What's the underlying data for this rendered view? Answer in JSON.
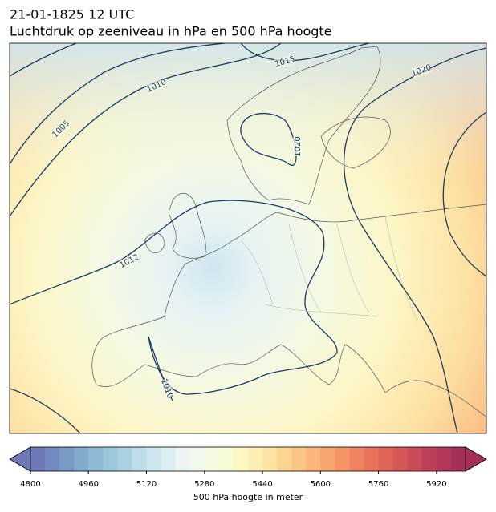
{
  "title": {
    "line1": "21-01-1825 12 UTC",
    "line2": "Luchtdruk op zeeniveau in hPa en 500 hPa hoogte"
  },
  "map": {
    "contour_labels": [
      "1005",
      "1010",
      "1015",
      "1020",
      "1020",
      "1012",
      "1010"
    ]
  },
  "colorbar": {
    "range": [
      4800,
      6000
    ],
    "ticks": [
      4800,
      4960,
      5120,
      5280,
      5440,
      5600,
      5760,
      5920
    ],
    "label": "500 hPa hoogte in meter",
    "colors": [
      "#6f78b8",
      "#7489bf",
      "#7a9ac6",
      "#82abcd",
      "#8cb9d4",
      "#9bc6dc",
      "#abd2e3",
      "#bcdde9",
      "#cde6ef",
      "#ddeff3",
      "#eaf5f4",
      "#f1f8ec",
      "#f6fae0",
      "#fafcd3",
      "#fdf8c4",
      "#fdefb3",
      "#fde3a2",
      "#fdd593",
      "#fcc686",
      "#fbb67a",
      "#f9a56f",
      "#f59466",
      "#f0835f",
      "#e8735a",
      "#df6457",
      "#d55756",
      "#ca4b58",
      "#be4058",
      "#b23759",
      "#a62f57"
    ]
  }
}
